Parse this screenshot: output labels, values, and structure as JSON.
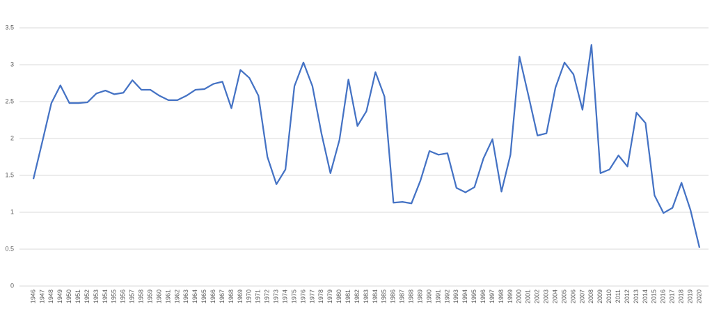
{
  "chart_data": {
    "type": "line",
    "categories": [
      "1946",
      "1947",
      "1948",
      "1949",
      "1950",
      "1951",
      "1952",
      "1953",
      "1954",
      "1955",
      "1956",
      "1957",
      "1958",
      "1959",
      "1960",
      "1961",
      "1962",
      "1963",
      "1964",
      "1965",
      "1966",
      "1967",
      "1968",
      "1969",
      "1970",
      "1971",
      "1972",
      "1973",
      "1974",
      "1975",
      "1976",
      "1977",
      "1978",
      "1979",
      "1980",
      "1981",
      "1982",
      "1983",
      "1984",
      "1985",
      "1986",
      "1987",
      "1988",
      "1989",
      "1990",
      "1991",
      "1992",
      "1993",
      "1994",
      "1995",
      "1996",
      "1997",
      "1998",
      "1999",
      "2000",
      "2001",
      "2002",
      "2003",
      "2004",
      "2005",
      "2006",
      "2007",
      "2008",
      "2009",
      "2010",
      "2011",
      "2012",
      "2013",
      "2014",
      "2015",
      "2016",
      "2017",
      "2018",
      "2019",
      "2020"
    ],
    "values": [
      1.45,
      1.96,
      2.48,
      2.72,
      2.48,
      2.48,
      2.49,
      2.61,
      2.65,
      2.6,
      2.62,
      2.79,
      2.66,
      2.66,
      2.58,
      2.52,
      2.52,
      2.58,
      2.66,
      2.67,
      2.74,
      2.77,
      2.41,
      2.93,
      2.82,
      2.58,
      1.75,
      1.38,
      1.58,
      2.71,
      3.03,
      2.71,
      2.07,
      1.53,
      1.98,
      2.8,
      2.17,
      2.37,
      2.9,
      2.57,
      1.13,
      1.14,
      1.12,
      1.43,
      1.83,
      1.78,
      1.8,
      1.33,
      1.27,
      1.34,
      1.73,
      1.99,
      1.28,
      1.78,
      3.11,
      2.58,
      2.04,
      2.07,
      2.69,
      3.03,
      2.87,
      2.39,
      3.27,
      1.53,
      1.58,
      1.77,
      1.62,
      2.35,
      2.21,
      1.23,
      0.99,
      1.06,
      1.4,
      1.03,
      0.52
    ],
    "color": "#4472c4",
    "ylim": [
      0,
      3.5
    ],
    "yticks": [
      0,
      0.5,
      1,
      1.5,
      2,
      2.5,
      3,
      3.5
    ],
    "grid": true
  }
}
